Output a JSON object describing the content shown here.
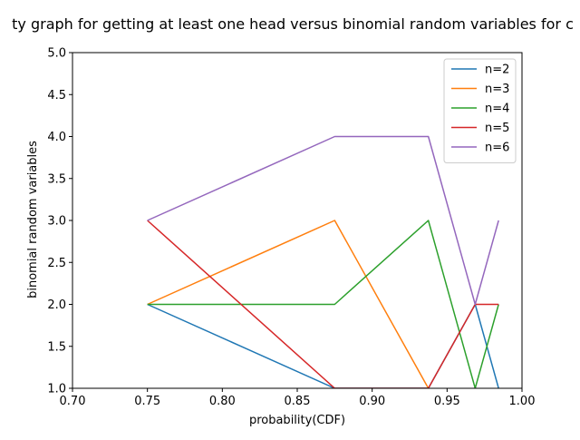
{
  "chart_data": {
    "type": "line",
    "title": "ty graph for getting at least one head versus binomial random variables for c",
    "xlabel": "probability(CDF)",
    "ylabel": "binomial random variables",
    "xlim": [
      0.7,
      1.0
    ],
    "ylim": [
      1.0,
      5.0
    ],
    "xticks": [
      0.7,
      0.75,
      0.8,
      0.85,
      0.9,
      0.95,
      1.0
    ],
    "xtick_labels": [
      "0.70",
      "0.75",
      "0.80",
      "0.85",
      "0.90",
      "0.95",
      "1.00"
    ],
    "yticks": [
      1.0,
      1.5,
      2.0,
      2.5,
      3.0,
      3.5,
      4.0,
      4.5,
      5.0
    ],
    "ytick_labels": [
      "1.0",
      "1.5",
      "2.0",
      "2.5",
      "3.0",
      "3.5",
      "4.0",
      "4.5",
      "5.0"
    ],
    "grid": false,
    "legend_position": "top-right",
    "series": [
      {
        "name": "n=2",
        "color": "#1f77b4",
        "x": [
          0.75,
          0.875,
          0.9375,
          0.96875,
          0.984375
        ],
        "y": [
          2,
          1,
          1,
          2,
          1
        ]
      },
      {
        "name": "n=3",
        "color": "#ff7f0e",
        "x": [
          0.75,
          0.875,
          0.9375
        ],
        "y": [
          2,
          3,
          1
        ]
      },
      {
        "name": "n=4",
        "color": "#2ca02c",
        "x": [
          0.75,
          0.875,
          0.9375,
          0.96875,
          0.984375
        ],
        "y": [
          2,
          2,
          3,
          1,
          2
        ]
      },
      {
        "name": "n=5",
        "color": "#d62728",
        "x": [
          0.75,
          0.875,
          0.9375,
          0.96875,
          0.984375
        ],
        "y": [
          3,
          1,
          1,
          2,
          2
        ]
      },
      {
        "name": "n=6",
        "color": "#9467bd",
        "x": [
          0.75,
          0.875,
          0.9375,
          0.96875,
          0.984375
        ],
        "y": [
          3,
          4,
          4,
          2,
          3
        ]
      }
    ]
  }
}
